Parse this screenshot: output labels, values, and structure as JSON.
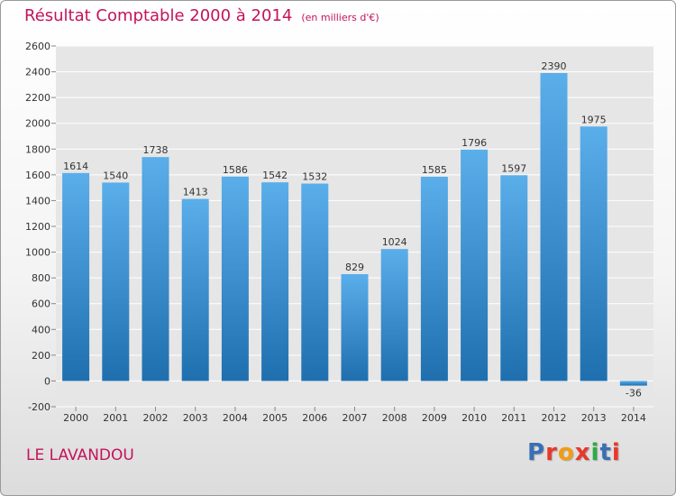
{
  "title": "Résultat Comptable 2000 à 2014",
  "unit_note": "(en milliers d'€)",
  "commune": "LE LAVANDOU",
  "logo": {
    "text": "Proxiti",
    "colors": [
      "#3a6fb5",
      "#e8392b",
      "#f39c12",
      "#e8392b",
      "#2eaa4a",
      "#3a6fb5",
      "#e8392b"
    ]
  },
  "colors": {
    "title": "#c4135a",
    "bar_light": "#5aaeea",
    "bar_dark": "#1f6faf",
    "grid": "#ffffff",
    "plot_bg": "#e6e6e6"
  },
  "chart_data": {
    "type": "bar",
    "title": "Résultat Comptable 2000 à 2014",
    "subtitle": "(en milliers d'€)",
    "xlabel": "",
    "ylabel": "",
    "categories": [
      "2000",
      "2001",
      "2002",
      "2003",
      "2004",
      "2005",
      "2006",
      "2007",
      "2008",
      "2009",
      "2010",
      "2011",
      "2012",
      "2013",
      "2014"
    ],
    "values": [
      1614,
      1540,
      1738,
      1413,
      1586,
      1542,
      1532,
      829,
      1024,
      1585,
      1796,
      1597,
      2390,
      1975,
      -36
    ],
    "ylim": [
      -200,
      2600
    ],
    "yticks": [
      -200,
      0,
      200,
      400,
      600,
      800,
      1000,
      1200,
      1400,
      1600,
      1800,
      2000,
      2200,
      2400,
      2600
    ],
    "grid": true,
    "legend": "none"
  }
}
